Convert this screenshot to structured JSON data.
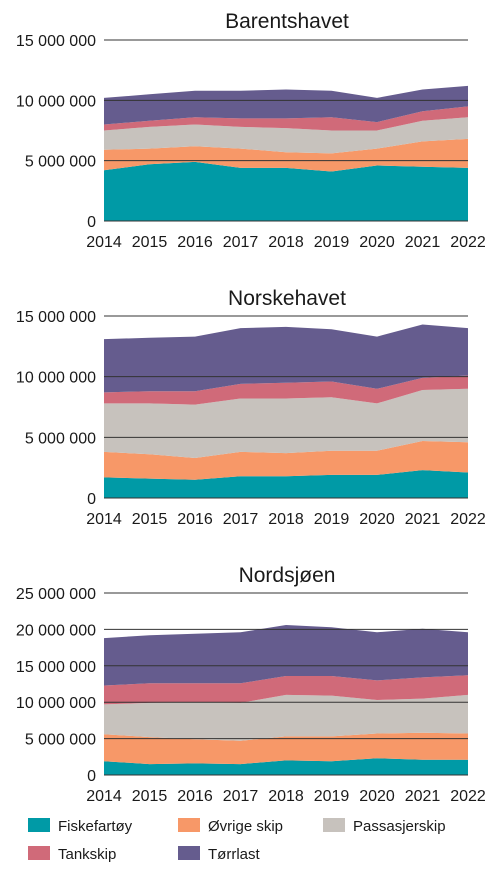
{
  "colors": {
    "fiskefartoy": "#009aa6",
    "ovrige": "#f79868",
    "passasjer": "#c7c2bd",
    "tank": "#d06a79",
    "torrlast": "#655c8e",
    "axis": "#333333"
  },
  "legend": [
    {
      "key": "fiskefartoy",
      "label": "Fiskefartøy"
    },
    {
      "key": "ovrige",
      "label": "Øvrige skip"
    },
    {
      "key": "passasjer",
      "label": "Passasjerskip"
    },
    {
      "key": "tank",
      "label": "Tankskip"
    },
    {
      "key": "torrlast",
      "label": "Tørrlast"
    }
  ],
  "chart_data": [
    {
      "type": "area",
      "stacked": true,
      "title": "Barentshavet",
      "x": [
        "2014",
        "2015",
        "2016",
        "2017",
        "2018",
        "2019",
        "2020",
        "2021",
        "2022"
      ],
      "ylim": [
        0,
        15000000
      ],
      "yticks": [
        0,
        5000000,
        10000000,
        15000000
      ],
      "ytick_labels": [
        "0",
        "5 000 000",
        "10 000 000",
        "15 000 000"
      ],
      "series": [
        {
          "name": "Fiskefartøy",
          "key": "fiskefartoy",
          "values": [
            4200000,
            4700000,
            4900000,
            4400000,
            4400000,
            4100000,
            4600000,
            4500000,
            4400000
          ]
        },
        {
          "name": "Øvrige skip",
          "key": "ovrige",
          "values": [
            1700000,
            1300000,
            1300000,
            1600000,
            1300000,
            1500000,
            1400000,
            2100000,
            2400000
          ]
        },
        {
          "name": "Passasjerskip",
          "key": "passasjer",
          "values": [
            1600000,
            1800000,
            1800000,
            1800000,
            2000000,
            1900000,
            1500000,
            1700000,
            1800000
          ]
        },
        {
          "name": "Tankskip",
          "key": "tank",
          "values": [
            500000,
            500000,
            600000,
            700000,
            800000,
            1100000,
            700000,
            800000,
            900000
          ]
        },
        {
          "name": "Tørrlast",
          "key": "torrlast",
          "values": [
            2200000,
            2200000,
            2200000,
            2300000,
            2400000,
            2200000,
            2000000,
            1800000,
            1700000
          ]
        }
      ]
    },
    {
      "type": "area",
      "stacked": true,
      "title": "Norskehavet",
      "x": [
        "2014",
        "2015",
        "2016",
        "2017",
        "2018",
        "2019",
        "2020",
        "2021",
        "2022"
      ],
      "ylim": [
        0,
        15000000
      ],
      "yticks": [
        0,
        5000000,
        10000000,
        15000000
      ],
      "ytick_labels": [
        "0",
        "5 000 000",
        "10 000 000",
        "15 000 000"
      ],
      "series": [
        {
          "name": "Fiskefartøy",
          "key": "fiskefartoy",
          "values": [
            1700000,
            1600000,
            1500000,
            1800000,
            1800000,
            1900000,
            1900000,
            2300000,
            2100000
          ]
        },
        {
          "name": "Øvrige skip",
          "key": "ovrige",
          "values": [
            2100000,
            2000000,
            1800000,
            2000000,
            1900000,
            2000000,
            2000000,
            2400000,
            2500000
          ]
        },
        {
          "name": "Passasjerskip",
          "key": "passasjer",
          "values": [
            4000000,
            4200000,
            4400000,
            4400000,
            4500000,
            4400000,
            3900000,
            4200000,
            4400000
          ]
        },
        {
          "name": "Tankskip",
          "key": "tank",
          "values": [
            900000,
            1000000,
            1100000,
            1200000,
            1300000,
            1300000,
            1200000,
            1000000,
            1100000
          ]
        },
        {
          "name": "Tørrlast",
          "key": "torrlast",
          "values": [
            4400000,
            4400000,
            4500000,
            4600000,
            4600000,
            4300000,
            4300000,
            4400000,
            3900000
          ]
        }
      ]
    },
    {
      "type": "area",
      "stacked": true,
      "title": "Nordsjøen",
      "x": [
        "2014",
        "2015",
        "2016",
        "2017",
        "2018",
        "2019",
        "2020",
        "2021",
        "2022"
      ],
      "ylim": [
        0,
        25000000
      ],
      "yticks": [
        0,
        5000000,
        10000000,
        15000000,
        20000000,
        25000000
      ],
      "ytick_labels": [
        "0",
        "5 000 000",
        "10 000 000",
        "15 000 000",
        "20 000 000",
        "25 000 000"
      ],
      "series": [
        {
          "name": "Fiskefartøy",
          "key": "fiskefartoy",
          "values": [
            1900000,
            1500000,
            1600000,
            1500000,
            2000000,
            1900000,
            2300000,
            2100000,
            2100000
          ]
        },
        {
          "name": "Øvrige skip",
          "key": "ovrige",
          "values": [
            3700000,
            3700000,
            3300000,
            3200000,
            3300000,
            3400000,
            3400000,
            3700000,
            3600000
          ]
        },
        {
          "name": "Passasjerskip",
          "key": "passasjer",
          "values": [
            4100000,
            4700000,
            5100000,
            5200000,
            5700000,
            5600000,
            4600000,
            4700000,
            5300000
          ]
        },
        {
          "name": "Tankskip",
          "key": "tank",
          "values": [
            2600000,
            2700000,
            2600000,
            2700000,
            2600000,
            2700000,
            2700000,
            2900000,
            2700000
          ]
        },
        {
          "name": "Tørrlast",
          "key": "torrlast",
          "values": [
            6500000,
            6600000,
            6800000,
            7000000,
            7000000,
            6700000,
            6600000,
            6700000,
            5900000
          ]
        }
      ]
    }
  ]
}
